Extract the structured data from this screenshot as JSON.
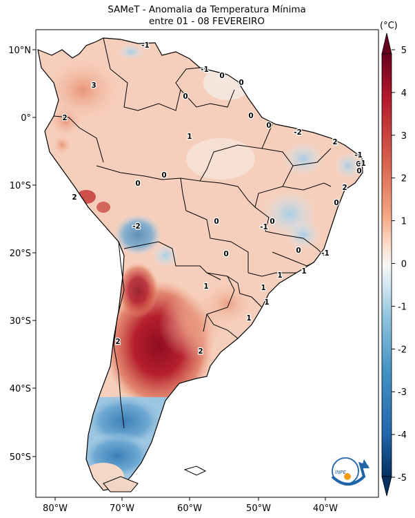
{
  "title_line1": "SAMeT - Anomalia da Temperatura Mínima",
  "title_line2": "entre 01 - 08 FEVEREIRO",
  "colorbar": {
    "unit": "(°C)",
    "ticks": [
      "5",
      "4",
      "3",
      "2",
      "1",
      "0",
      "-1",
      "-2",
      "-3",
      "-4",
      "-5"
    ],
    "colormap": "RdBu_r",
    "range": [
      -5,
      5
    ],
    "extend": "both"
  },
  "axes": {
    "lat_ticks": [
      "10°N",
      "0°",
      "10°S",
      "20°S",
      "30°S",
      "40°S",
      "50°S"
    ],
    "lon_ticks": [
      "80°W",
      "70°W",
      "60°W",
      "50°W",
      "40°W"
    ],
    "lon_range": [
      -83,
      -33
    ],
    "lat_range": [
      13,
      -56
    ]
  },
  "contour_labels": [
    "-1",
    "3",
    "-1",
    "0",
    "0",
    "0",
    "0",
    "2",
    "1",
    "0",
    "-2",
    "2",
    "-1",
    "0",
    "-1",
    "0",
    "2",
    "0",
    "0",
    "2",
    "-2",
    "0",
    "-1",
    "0",
    "0",
    "0",
    "-1",
    "1",
    "1",
    "1",
    "1",
    "1",
    "2",
    "2",
    "1",
    "0"
  ],
  "logo": {
    "text": "INPE",
    "name": "inpe-logo"
  },
  "colors": {
    "frame": "#000000",
    "background": "#ffffff"
  }
}
